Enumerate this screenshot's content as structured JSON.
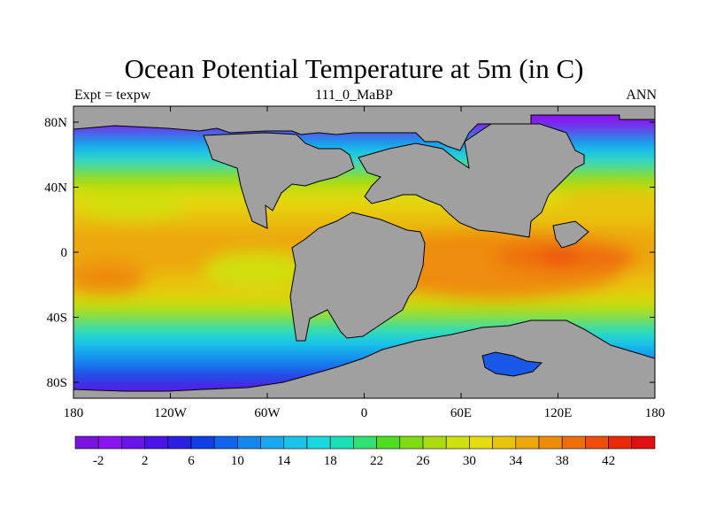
{
  "title": "Ocean Potential Temperature at 5m (in C)",
  "subtitle_left": "Expt = texpw",
  "subtitle_center": "111_0_MaBP",
  "subtitle_right": "ANN",
  "map": {
    "land_color": "#a0a0a0",
    "x_ticks": [
      "180",
      "120W",
      "60W",
      "0",
      "60E",
      "120E",
      "180"
    ],
    "y_ticks": [
      "80N",
      "40N",
      "0",
      "40S",
      "80S"
    ]
  },
  "colorbar": {
    "colors": [
      "#7a14dc",
      "#8a14f0",
      "#6a14ea",
      "#4a14e6",
      "#2a20e0",
      "#1040e4",
      "#1264ec",
      "#1488ee",
      "#16a8f0",
      "#18c4ea",
      "#1ad8e0",
      "#18e0b4",
      "#30e070",
      "#50dc20",
      "#80dc10",
      "#acdc10",
      "#d0e010",
      "#e4dc10",
      "#e8c40c",
      "#eca80a",
      "#ee8c0a",
      "#ee6e0a",
      "#ee4e0a",
      "#e82a0a",
      "#e01010"
    ],
    "labels": [
      "-2",
      "2",
      "6",
      "10",
      "14",
      "18",
      "22",
      "26",
      "30",
      "34",
      "38",
      "42"
    ]
  },
  "chart_data": {
    "type": "heatmap",
    "title": "Ocean Potential Temperature at 5m (in C)",
    "xlabel": "",
    "ylabel": "",
    "x_range": [
      "180W",
      "180E"
    ],
    "y_range": [
      "90S",
      "90N"
    ],
    "color_scale": {
      "min": -4,
      "max": 44,
      "step": 2,
      "units": "C"
    },
    "patterns": {
      "polar_north": -3,
      "polar_south": -1,
      "mid_latitudes_40": 18,
      "tropics_east_pacific": 31,
      "tropics_indian_ocean": 35,
      "west_pacific_maximum": 36
    }
  }
}
